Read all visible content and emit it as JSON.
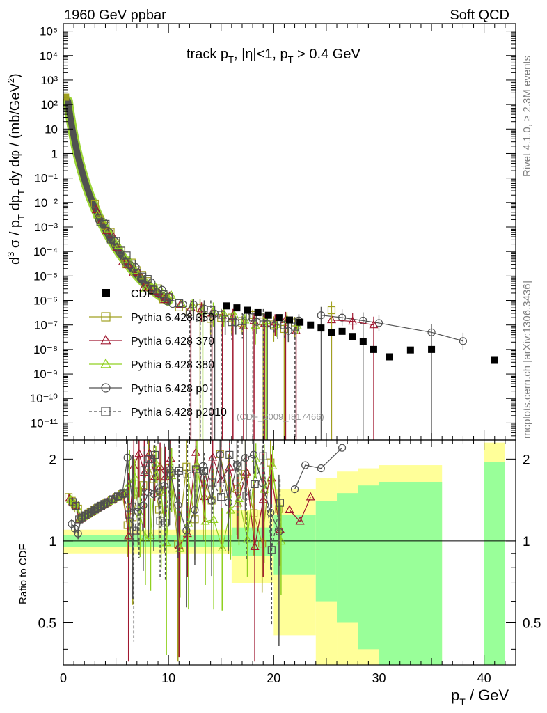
{
  "header": {
    "left": "1960 GeV ppbar",
    "right": "Soft QCD"
  },
  "side_labels": {
    "rivet": "Rivet 4.1.0, ≥ 2.3M events",
    "mcplots": "mcplots.cern.ch [arXiv:1306.3436]"
  },
  "watermark": "(CDF_2009_I817466)",
  "chart_data": {
    "type": "scatter",
    "title": "track p_T, |η|<1, p_T > 0.4 GeV",
    "title_parts": {
      "a": "track p",
      "sub1": "T",
      "b": ", |η|<1, p",
      "sub2": "T",
      "c": " > 0.4 GeV"
    },
    "xlabel": "p_T / GeV",
    "xlabel_parts": {
      "main": "p",
      "sub": "T",
      "rest": " / GeV"
    },
    "ylabel": "d³σ / p_T dp_T dy dφ / (mb/GeV²)",
    "ylabel_parts": {
      "p1": "d",
      "s1": "3",
      "p2": " σ / p",
      "b1": "T",
      "p3": " dp",
      "b2": "T",
      "p4": " dy dφ / (mb/GeV",
      "s2": "2",
      "p5": ")"
    },
    "ratio_ylabel": "Ratio to CDF",
    "xlim": [
      0,
      43
    ],
    "ylim": [
      2e-12,
      200000.0
    ],
    "ratio_ylim": [
      0.35,
      2.35
    ],
    "x_ticks": [
      "0",
      "10",
      "20",
      "30",
      "40"
    ],
    "y_ticks": [
      "10⁻¹¹",
      "10⁻¹⁰",
      "10⁻⁹",
      "10⁻⁸",
      "10⁻⁷",
      "10⁻⁶",
      "10⁻⁵",
      "10⁻⁴",
      "10⁻³",
      "10⁻²",
      "10⁻¹",
      "1",
      "10",
      "10²",
      "10³",
      "10⁴",
      "10⁵"
    ],
    "ratio_ticks": [
      "0.5",
      "1",
      "2"
    ],
    "legend": [
      "CDF",
      "Pythia 6.428 350",
      "Pythia 6.428 370",
      "Pythia 6.428 380",
      "Pythia 6.428 p0",
      "Pythia 6.428 p2010"
    ],
    "colors": {
      "data": "#000000",
      "p350": "#a0a020",
      "p370": "#a01830",
      "p380": "#90d020",
      "p0": "#505050",
      "p2010": "#505050",
      "band_outer": "#ffff99",
      "band_inner": "#99ff99"
    },
    "cdf": {
      "x": [
        15.5,
        16.5,
        17.5,
        18.5,
        19.5,
        20.5,
        21.5,
        22.5,
        23.5,
        24.5,
        25.5,
        26.5,
        27.5,
        28.5,
        29.5,
        31,
        33,
        35,
        41
      ],
      "y": [
        6e-07,
        5e-07,
        4e-07,
        3.2e-07,
        2.5e-07,
        2e-07,
        1.6e-07,
        1.3e-07,
        1e-07,
        7.5e-08,
        4.8e-08,
        5.5e-08,
        3.4e-08,
        2.1e-08,
        1e-08,
        5e-09,
        9.5e-09,
        1e-08,
        3.6e-09
      ]
    },
    "mc_tail": {
      "p0_x": [
        24.5,
        26.5,
        28.5,
        30,
        35,
        38
      ],
      "p0_y": [
        2.5e-07,
        2e-07,
        1.5e-07,
        1.2e-07,
        5e-08,
        2.2e-08
      ],
      "p370_x": [
        25.5,
        27.5,
        29.5
      ],
      "p370_y": [
        1.6e-07,
        1.4e-07,
        1e-07
      ],
      "p350_x": [
        25.5
      ],
      "p350_y": [
        4e-07
      ]
    },
    "ratio_tail": {
      "p0_x": [
        22,
        23,
        24.5,
        26.5
      ],
      "p0_y": [
        1.55,
        1.9,
        1.85,
        2.2
      ],
      "p370_x": [
        21.5,
        22.5,
        23.5
      ],
      "p370_y": [
        1.3,
        1.18,
        1.45
      ]
    },
    "uncertainty_bands": [
      {
        "x0": 0,
        "x1": 16,
        "inner": 0.05,
        "outer": 0.1
      },
      {
        "x0": 16,
        "x1": 20,
        "inner": 0.12,
        "outer": 0.3
      },
      {
        "x0": 20,
        "x1": 24,
        "inner": 0.25,
        "outer": 0.55
      },
      {
        "x0": 24,
        "x1": 26,
        "inner": 0.4,
        "outer": 0.7
      },
      {
        "x0": 26,
        "x1": 28,
        "inner": 0.5,
        "outer": 0.8
      },
      {
        "x0": 28,
        "x1": 30,
        "inner": 0.6,
        "outer": 0.85
      },
      {
        "x0": 30,
        "x1": 36,
        "inner": 0.65,
        "outer": 0.9
      },
      {
        "x0": 40,
        "x1": 42,
        "inner": 0.95,
        "outer": 1.3
      }
    ]
  }
}
